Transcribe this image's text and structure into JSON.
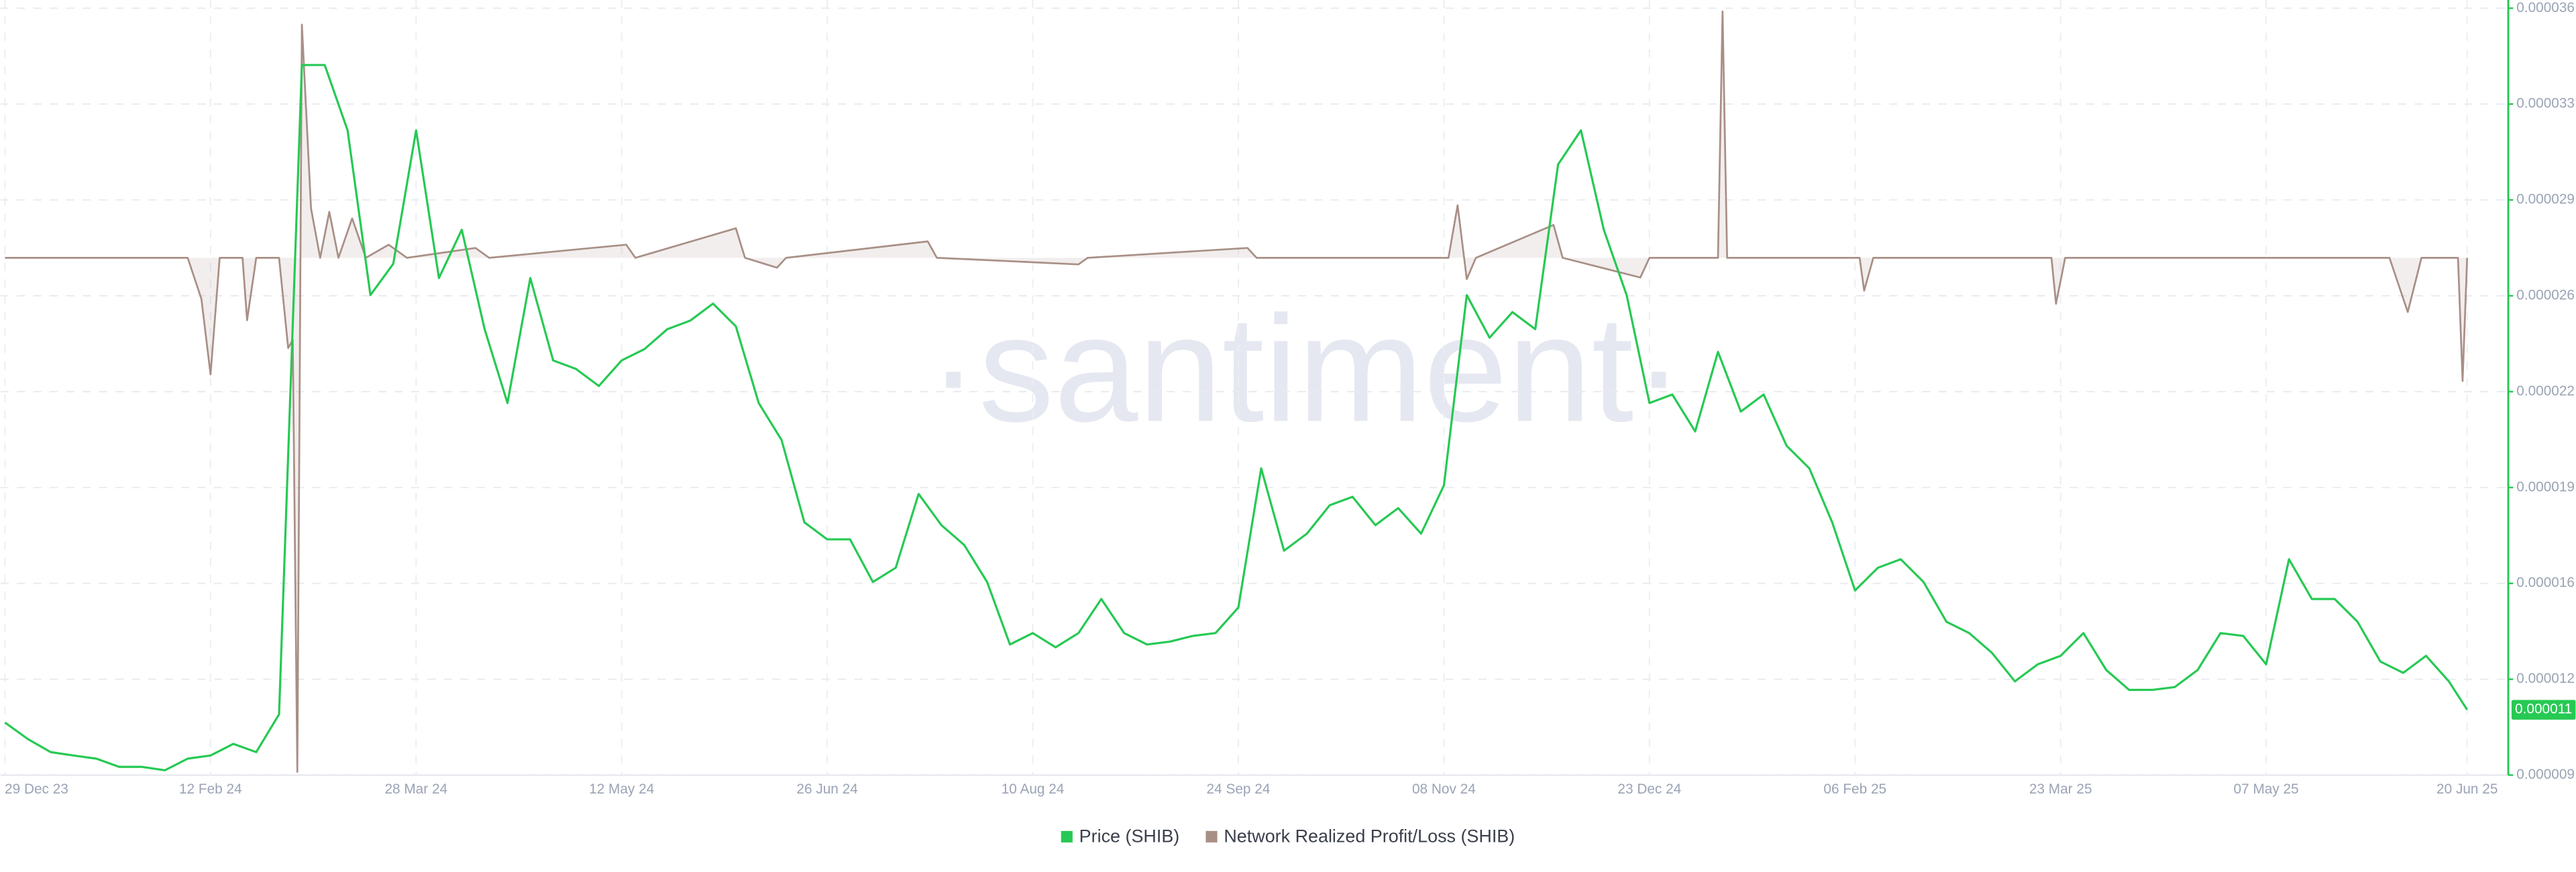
{
  "chart_data": {
    "type": "line",
    "watermark": "·santiment·",
    "xlim": [
      "2023-12-28",
      "2025-06-29"
    ],
    "xticks": [
      {
        "value": "2023-12-29",
        "label": "29 Dec 23"
      },
      {
        "value": "2024-02-12",
        "label": "12 Feb 24"
      },
      {
        "value": "2024-03-28",
        "label": "28 Mar 24"
      },
      {
        "value": "2024-05-12",
        "label": "12 May 24"
      },
      {
        "value": "2024-06-26",
        "label": "26 Jun 24"
      },
      {
        "value": "2024-08-10",
        "label": "10 Aug 24"
      },
      {
        "value": "2024-09-24",
        "label": "24 Sep 24"
      },
      {
        "value": "2024-11-08",
        "label": "08 Nov 24"
      },
      {
        "value": "2024-12-23",
        "label": "23 Dec 24"
      },
      {
        "value": "2025-02-06",
        "label": "06 Feb 25"
      },
      {
        "value": "2025-03-23",
        "label": "23 Mar 25"
      },
      {
        "value": "2025-05-07",
        "label": "07 May 25"
      },
      {
        "value": "2025-06-20",
        "label": "20 Jun 25"
      }
    ],
    "ylim": [
      -315,
      152
    ],
    "y2lim": [
      9e-06,
      3.6e-05
    ],
    "y2ticks": [
      9e-06,
      {
        "value": 1.2375e-05,
        "label": "0.000012"
      },
      {
        "value": 1.575e-05,
        "label": "0.000016"
      },
      {
        "value": 1.9125e-05,
        "label": "0.000019"
      },
      {
        "value": 2.25e-05,
        "label": "0.000022"
      },
      {
        "value": 2.5875e-05,
        "label": "0.000026"
      },
      {
        "value": 2.925e-05,
        "label": "0.000029"
      },
      {
        "value": 3.2625e-05,
        "label": "0.000033"
      },
      3.6e-05
    ],
    "grid": true,
    "legend": "bottom",
    "current_price_label": {
      "value": 1.13e-05,
      "label": "0.000011"
    },
    "x": [
      "2023-12-29",
      "2024-01-03",
      "2024-01-08",
      "2024-01-13",
      "2024-01-18",
      "2024-01-23",
      "2024-01-28",
      "2024-02-02",
      "2024-02-07",
      "2024-02-12",
      "2024-02-17",
      "2024-02-22",
      "2024-02-27",
      "2024-03-03",
      "2024-03-08",
      "2024-03-13",
      "2024-03-18",
      "2024-03-23",
      "2024-03-28",
      "2024-04-02",
      "2024-04-07",
      "2024-04-12",
      "2024-04-17",
      "2024-04-22",
      "2024-04-27",
      "2024-05-02",
      "2024-05-07",
      "2024-05-12",
      "2024-05-17",
      "2024-05-22",
      "2024-05-27",
      "2024-06-01",
      "2024-06-06",
      "2024-06-11",
      "2024-06-16",
      "2024-06-21",
      "2024-06-26",
      "2024-07-01",
      "2024-07-06",
      "2024-07-11",
      "2024-07-16",
      "2024-07-21",
      "2024-07-26",
      "2024-07-31",
      "2024-08-05",
      "2024-08-10",
      "2024-08-15",
      "2024-08-20",
      "2024-08-25",
      "2024-08-30",
      "2024-09-04",
      "2024-09-09",
      "2024-09-14",
      "2024-09-19",
      "2024-09-24",
      "2024-09-29",
      "2024-10-04",
      "2024-10-09",
      "2024-10-14",
      "2024-10-19",
      "2024-10-24",
      "2024-10-29",
      "2024-11-03",
      "2024-11-08",
      "2024-11-13",
      "2024-11-18",
      "2024-11-23",
      "2024-11-28",
      "2024-12-03",
      "2024-12-08",
      "2024-12-13",
      "2024-12-18",
      "2024-12-23",
      "2024-12-28",
      "2025-01-02",
      "2025-01-07",
      "2025-01-12",
      "2025-01-17",
      "2025-01-22",
      "2025-01-27",
      "2025-02-01",
      "2025-02-06",
      "2025-02-11",
      "2025-02-16",
      "2025-02-21",
      "2025-02-26",
      "2025-03-03",
      "2025-03-08",
      "2025-03-13",
      "2025-03-18",
      "2025-03-23",
      "2025-03-28",
      "2025-04-02",
      "2025-04-07",
      "2025-04-12",
      "2025-04-17",
      "2025-04-22",
      "2025-04-27",
      "2025-05-02",
      "2025-05-07",
      "2025-05-12",
      "2025-05-17",
      "2025-05-22",
      "2025-05-27",
      "2025-06-01",
      "2025-06-06",
      "2025-06-11",
      "2025-06-16",
      "2025-06-20"
    ],
    "series": [
      {
        "name": "Price (SHIB)",
        "color": "#26c953",
        "axis": "y2",
        "values": [
          1.085e-05,
          1.027e-05,
          9.81e-06,
          9.69e-06,
          9.58e-06,
          9.29e-06,
          9.29e-06,
          9.17e-06,
          9.58e-06,
          9.69e-06,
          1.01e-05,
          9.81e-06,
          1.114e-05,
          3.4e-05,
          3.4e-05,
          3.17e-05,
          2.59e-05,
          2.7e-05,
          3.17e-05,
          2.65e-05,
          2.82e-05,
          2.47e-05,
          2.21e-05,
          2.65e-05,
          2.36e-05,
          2.33e-05,
          2.27e-05,
          2.36e-05,
          2.4e-05,
          2.47e-05,
          2.5e-05,
          2.56e-05,
          2.48e-05,
          2.21e-05,
          2.08e-05,
          1.79e-05,
          1.73e-05,
          1.73e-05,
          1.58e-05,
          1.63e-05,
          1.89e-05,
          1.78e-05,
          1.71e-05,
          1.58e-05,
          1.36e-05,
          1.4e-05,
          1.35e-05,
          1.4e-05,
          1.52e-05,
          1.4e-05,
          1.36e-05,
          1.37e-05,
          1.39e-05,
          1.4e-05,
          1.49e-05,
          1.98e-05,
          1.69e-05,
          1.75e-05,
          1.85e-05,
          1.88e-05,
          1.78e-05,
          1.84e-05,
          1.75e-05,
          1.92e-05,
          2.59e-05,
          2.44e-05,
          2.53e-05,
          2.47e-05,
          3.05e-05,
          3.17e-05,
          2.82e-05,
          2.59e-05,
          2.21e-05,
          2.24e-05,
          2.11e-05,
          2.39e-05,
          2.18e-05,
          2.24e-05,
          2.06e-05,
          1.98e-05,
          1.79e-05,
          1.55e-05,
          1.63e-05,
          1.66e-05,
          1.58e-05,
          1.44e-05,
          1.4e-05,
          1.33e-05,
          1.23e-05,
          1.29e-05,
          1.32e-05,
          1.4e-05,
          1.27e-05,
          1.2e-05,
          1.2e-05,
          1.21e-05,
          1.27e-05,
          1.4e-05,
          1.39e-05,
          1.29e-05,
          1.66e-05,
          1.52e-05,
          1.52e-05,
          1.44e-05,
          1.3e-05,
          1.26e-05,
          1.32e-05,
          1.23e-05,
          1.13e-05
        ]
      },
      {
        "name": "Network Realized Profit/Loss (SHIB)",
        "color": "#a88f86",
        "axis": "y",
        "x": [
          "2023-12-29",
          "2024-02-07",
          "2024-02-10",
          "2024-02-12",
          "2024-02-14",
          "2024-02-19",
          "2024-02-20",
          "2024-02-22",
          "2024-02-27",
          "2024-02-29",
          "2024-03-01",
          "2024-03-02",
          "2024-03-03",
          "2024-03-05",
          "2024-03-07",
          "2024-03-09",
          "2024-03-11",
          "2024-03-14",
          "2024-03-17",
          "2024-03-22",
          "2024-03-26",
          "2024-04-10",
          "2024-04-13",
          "2024-05-13",
          "2024-05-15",
          "2024-06-06",
          "2024-06-08",
          "2024-06-15",
          "2024-06-17",
          "2024-07-18",
          "2024-07-20",
          "2024-08-20",
          "2024-08-22",
          "2024-09-26",
          "2024-09-28",
          "2024-11-09",
          "2024-11-11",
          "2024-11-13",
          "2024-11-15",
          "2024-12-02",
          "2024-12-04",
          "2024-12-21",
          "2024-12-23",
          "2025-01-07",
          "2025-01-08",
          "2025-01-09",
          "2025-02-07",
          "2025-02-08",
          "2025-02-10",
          "2025-03-21",
          "2025-03-22",
          "2025-03-24",
          "2025-06-03",
          "2025-06-07",
          "2025-06-10",
          "2025-06-18",
          "2025-06-19",
          "2025-06-20"
        ],
        "values": [
          0,
          0,
          -25,
          -71,
          0,
          0,
          -38,
          0,
          0,
          -55,
          -50,
          -313,
          142,
          30,
          0,
          28,
          0,
          24,
          0,
          8,
          0,
          6,
          0,
          8,
          0,
          18,
          0,
          -6,
          0,
          10,
          0,
          -4,
          0,
          6,
          0,
          0,
          32,
          -13,
          0,
          20,
          0,
          -12,
          0,
          0,
          150,
          0,
          0,
          -20,
          0,
          0,
          -28,
          0,
          0,
          -33,
          0,
          0,
          -75,
          0
        ]
      }
    ]
  }
}
